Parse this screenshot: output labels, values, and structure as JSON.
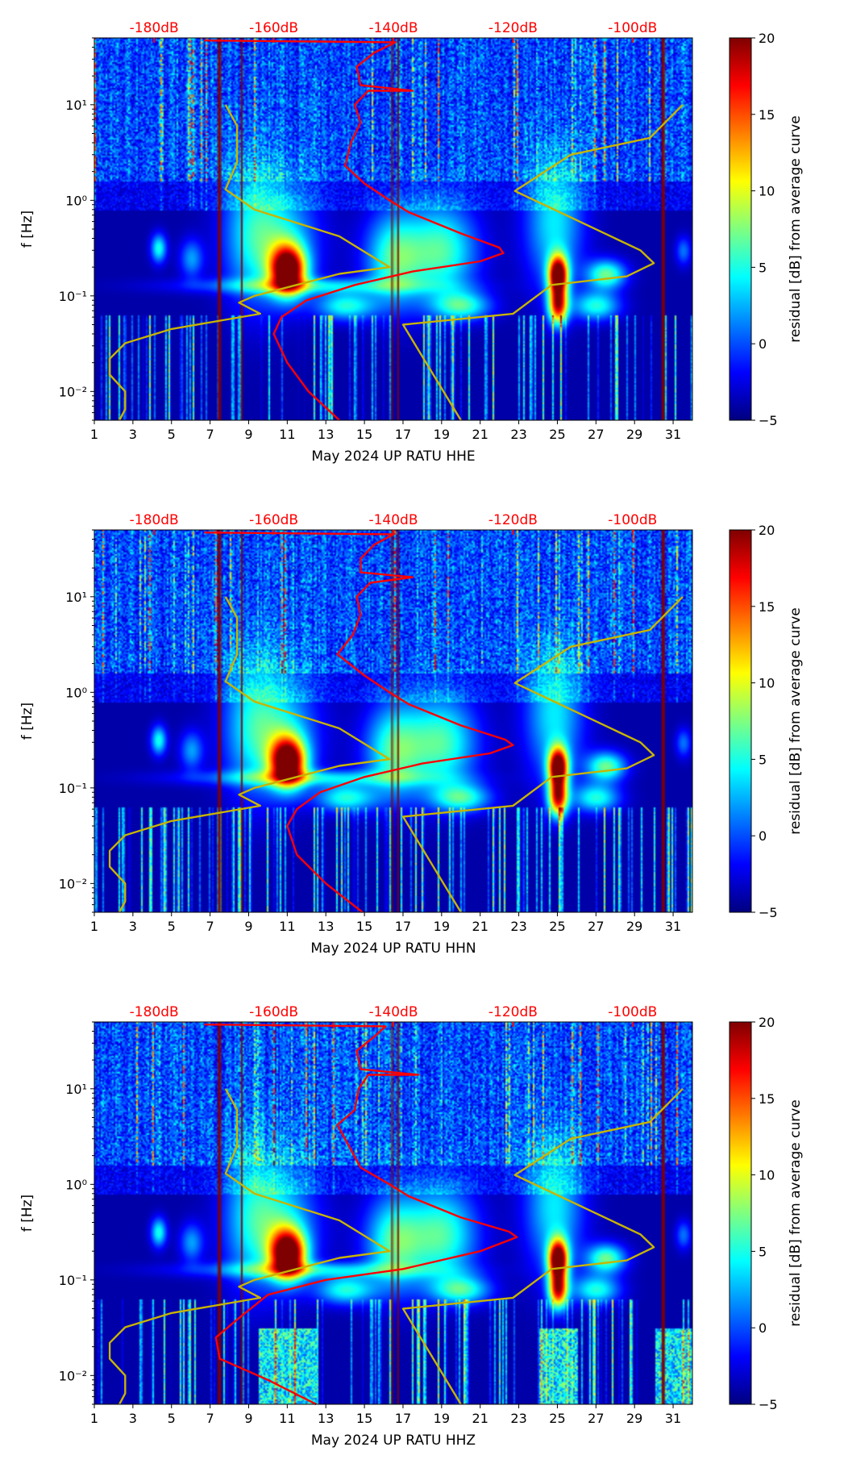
{
  "chart_data": [
    {
      "type": "heatmap",
      "xlabel": "May 2024 UP RATU  HHE",
      "ylabel": "f [Hz]",
      "xlim": [
        1,
        32
      ],
      "ylim": [
        0.005,
        50
      ],
      "yscale": "log",
      "xticks": [
        "1",
        "3",
        "5",
        "7",
        "9",
        "11",
        "13",
        "15",
        "17",
        "19",
        "21",
        "23",
        "25",
        "27",
        "29",
        "31"
      ],
      "yticks": [
        {
          "v": 0.01,
          "label": "10⁻²"
        },
        {
          "v": 0.1,
          "label": "10⁻¹"
        },
        {
          "v": 1,
          "label": "10⁰"
        },
        {
          "v": 10,
          "label": "10¹"
        }
      ],
      "top_axis": {
        "ticks": [
          {
            "db": -180,
            "label": "-180dB"
          },
          {
            "db": -160,
            "label": "-160dB"
          },
          {
            "db": -140,
            "label": "-140dB"
          },
          {
            "db": -120,
            "label": "-120dB"
          },
          {
            "db": -100,
            "label": "-100dB"
          }
        ],
        "day_at_minus180": 4.1,
        "days_per_db": 0.31
      },
      "colorbar": {
        "label": "residual [dB] from average curve",
        "range": [
          -5,
          20
        ],
        "ticks": [
          "−5",
          "0",
          "5",
          "10",
          "15",
          "20"
        ]
      },
      "series": [
        {
          "name": "median PSD (dB)",
          "color": "#ff0000",
          "points": [
            [
              13.7,
              0.005
            ],
            [
              12.1,
              0.01
            ],
            [
              11,
              0.02
            ],
            [
              10.3,
              0.04
            ],
            [
              10.7,
              0.06
            ],
            [
              12,
              0.09
            ],
            [
              14.5,
              0.13
            ],
            [
              17.5,
              0.18
            ],
            [
              21,
              0.23
            ],
            [
              22.2,
              0.28
            ],
            [
              22,
              0.32
            ],
            [
              20,
              0.45
            ],
            [
              17.3,
              0.75
            ],
            [
              16.3,
              1.0
            ],
            [
              15,
              1.5
            ],
            [
              14,
              2.3
            ],
            [
              14.3,
              4
            ],
            [
              14.8,
              6.5
            ],
            [
              14.5,
              10
            ],
            [
              15.2,
              14
            ],
            [
              17.5,
              14
            ],
            [
              14.8,
              16
            ],
            [
              14.6,
              25
            ],
            [
              15.5,
              35
            ],
            [
              16.6,
              45
            ],
            [
              6.7,
              47
            ]
          ]
        },
        {
          "name": "noise model low",
          "color": "#c8b400",
          "points": [
            [
              2.3,
              0.005
            ],
            [
              2.6,
              0.0065
            ],
            [
              2.6,
              0.01
            ],
            [
              1.8,
              0.015
            ],
            [
              1.8,
              0.022
            ],
            [
              2.6,
              0.032
            ],
            [
              5,
              0.045
            ],
            [
              9.6,
              0.065
            ],
            [
              8.5,
              0.085
            ],
            [
              9.3,
              0.1
            ],
            [
              13.7,
              0.17
            ],
            [
              16.3,
              0.2
            ],
            [
              13.7,
              0.42
            ],
            [
              9.3,
              0.8
            ],
            [
              7.8,
              1.3
            ],
            [
              8.4,
              2.5
            ],
            [
              8.4,
              6
            ],
            [
              7.8,
              10
            ]
          ]
        },
        {
          "name": "noise model high",
          "color": "#c8b400",
          "points": [
            [
              20,
              0.005
            ],
            [
              17,
              0.05
            ],
            [
              22.7,
              0.065
            ],
            [
              24.7,
              0.13
            ],
            [
              28.6,
              0.16
            ],
            [
              30,
              0.22
            ],
            [
              29.3,
              0.3
            ],
            [
              22.8,
              1.25
            ],
            [
              25.7,
              3
            ],
            [
              29.8,
              4.5
            ],
            [
              31.5,
              10
            ]
          ]
        }
      ]
    },
    {
      "type": "heatmap",
      "xlabel": "May 2024 UP RATU  HHN",
      "ylabel": "f [Hz]",
      "xlim": [
        1,
        32
      ],
      "ylim": [
        0.005,
        50
      ],
      "yscale": "log",
      "xticks": [
        "1",
        "3",
        "5",
        "7",
        "9",
        "11",
        "13",
        "15",
        "17",
        "19",
        "21",
        "23",
        "25",
        "27",
        "29",
        "31"
      ],
      "yticks": [
        {
          "v": 0.01,
          "label": "10⁻²"
        },
        {
          "v": 0.1,
          "label": "10⁻¹"
        },
        {
          "v": 1,
          "label": "10⁰"
        },
        {
          "v": 10,
          "label": "10¹"
        }
      ],
      "top_axis": {
        "ticks": [
          {
            "db": -180,
            "label": "-180dB"
          },
          {
            "db": -160,
            "label": "-160dB"
          },
          {
            "db": -140,
            "label": "-140dB"
          },
          {
            "db": -120,
            "label": "-120dB"
          },
          {
            "db": -100,
            "label": "-100dB"
          }
        ],
        "day_at_minus180": 4.1,
        "days_per_db": 0.31
      },
      "colorbar": {
        "label": "residual [dB] from average curve",
        "range": [
          -5,
          20
        ],
        "ticks": [
          "−5",
          "0",
          "5",
          "10",
          "15",
          "20"
        ]
      },
      "series": [
        {
          "name": "median PSD (dB)",
          "color": "#ff0000",
          "points": [
            [
              14.9,
              0.005
            ],
            [
              13,
              0.01
            ],
            [
              11.5,
              0.02
            ],
            [
              11,
              0.04
            ],
            [
              11.5,
              0.06
            ],
            [
              12.7,
              0.09
            ],
            [
              15,
              0.13
            ],
            [
              18,
              0.18
            ],
            [
              21.5,
              0.23
            ],
            [
              22.7,
              0.28
            ],
            [
              22.3,
              0.32
            ],
            [
              20,
              0.45
            ],
            [
              17.3,
              0.75
            ],
            [
              16.3,
              1.0
            ],
            [
              15,
              1.5
            ],
            [
              13.6,
              2.5
            ],
            [
              14.4,
              4
            ],
            [
              14.8,
              6.5
            ],
            [
              14.6,
              10
            ],
            [
              15.3,
              14
            ],
            [
              17.5,
              16
            ],
            [
              14.8,
              18
            ],
            [
              14.8,
              25
            ],
            [
              15.5,
              35
            ],
            [
              16.5,
              45
            ],
            [
              6.7,
              47
            ]
          ]
        },
        {
          "name": "noise model low",
          "color": "#c8b400",
          "points": [
            [
              2.3,
              0.005
            ],
            [
              2.6,
              0.0065
            ],
            [
              2.6,
              0.01
            ],
            [
              1.8,
              0.015
            ],
            [
              1.8,
              0.022
            ],
            [
              2.6,
              0.032
            ],
            [
              5,
              0.045
            ],
            [
              9.6,
              0.065
            ],
            [
              8.5,
              0.085
            ],
            [
              9.3,
              0.1
            ],
            [
              13.7,
              0.17
            ],
            [
              16.3,
              0.2
            ],
            [
              13.7,
              0.42
            ],
            [
              9.3,
              0.8
            ],
            [
              7.8,
              1.3
            ],
            [
              8.4,
              2.5
            ],
            [
              8.4,
              6
            ],
            [
              7.8,
              10
            ]
          ]
        },
        {
          "name": "noise model high",
          "color": "#c8b400",
          "points": [
            [
              20,
              0.005
            ],
            [
              17,
              0.05
            ],
            [
              22.7,
              0.065
            ],
            [
              24.7,
              0.13
            ],
            [
              28.6,
              0.16
            ],
            [
              30,
              0.22
            ],
            [
              29.3,
              0.3
            ],
            [
              22.8,
              1.25
            ],
            [
              25.7,
              3
            ],
            [
              29.8,
              4.5
            ],
            [
              31.5,
              10
            ]
          ]
        }
      ]
    },
    {
      "type": "heatmap",
      "xlabel": "May 2024 UP RATU  HHZ",
      "ylabel": "f [Hz]",
      "xlim": [
        1,
        32
      ],
      "ylim": [
        0.005,
        50
      ],
      "yscale": "log",
      "xticks": [
        "1",
        "3",
        "5",
        "7",
        "9",
        "11",
        "13",
        "15",
        "17",
        "19",
        "21",
        "23",
        "25",
        "27",
        "29",
        "31"
      ],
      "yticks": [
        {
          "v": 0.01,
          "label": "10⁻²"
        },
        {
          "v": 0.1,
          "label": "10⁻¹"
        },
        {
          "v": 1,
          "label": "10⁰"
        },
        {
          "v": 10,
          "label": "10¹"
        }
      ],
      "top_axis": {
        "ticks": [
          {
            "db": -180,
            "label": "-180dB"
          },
          {
            "db": -160,
            "label": "-160dB"
          },
          {
            "db": -140,
            "label": "-140dB"
          },
          {
            "db": -120,
            "label": "-120dB"
          },
          {
            "db": -100,
            "label": "-100dB"
          }
        ],
        "day_at_minus180": 4.1,
        "days_per_db": 0.31
      },
      "colorbar": {
        "label": "residual [dB] from average curve",
        "range": [
          -5,
          20
        ],
        "ticks": [
          "−5",
          "0",
          "5",
          "10",
          "15",
          "20"
        ]
      },
      "series": [
        {
          "name": "median PSD (dB)",
          "color": "#ff0000",
          "points": [
            [
              12.5,
              0.005
            ],
            [
              10,
              0.009
            ],
            [
              7.5,
              0.015
            ],
            [
              7.3,
              0.025
            ],
            [
              8.5,
              0.04
            ],
            [
              10,
              0.07
            ],
            [
              13,
              0.1
            ],
            [
              17,
              0.13
            ],
            [
              21,
              0.2
            ],
            [
              22.9,
              0.28
            ],
            [
              22.5,
              0.32
            ],
            [
              20,
              0.45
            ],
            [
              17.3,
              0.75
            ],
            [
              16.3,
              1.0
            ],
            [
              14.8,
              1.5
            ],
            [
              13.6,
              4.2
            ],
            [
              14.5,
              6
            ],
            [
              14.7,
              10
            ],
            [
              15.2,
              14
            ],
            [
              17.8,
              14
            ],
            [
              14.8,
              16
            ],
            [
              14.6,
              25
            ],
            [
              15.5,
              35
            ],
            [
              16.1,
              45
            ],
            [
              6.7,
              47
            ]
          ]
        },
        {
          "name": "noise model low",
          "color": "#c8b400",
          "points": [
            [
              2.3,
              0.005
            ],
            [
              2.6,
              0.0065
            ],
            [
              2.6,
              0.01
            ],
            [
              1.8,
              0.015
            ],
            [
              1.8,
              0.022
            ],
            [
              2.6,
              0.032
            ],
            [
              5,
              0.045
            ],
            [
              9.6,
              0.065
            ],
            [
              8.5,
              0.085
            ],
            [
              9.3,
              0.1
            ],
            [
              13.7,
              0.17
            ],
            [
              16.3,
              0.2
            ],
            [
              13.7,
              0.42
            ],
            [
              9.3,
              0.8
            ],
            [
              7.8,
              1.3
            ],
            [
              8.4,
              2.5
            ],
            [
              8.4,
              6
            ],
            [
              7.8,
              10
            ]
          ]
        },
        {
          "name": "noise model high",
          "color": "#c8b400",
          "points": [
            [
              20,
              0.005
            ],
            [
              17,
              0.05
            ],
            [
              22.7,
              0.065
            ],
            [
              24.7,
              0.13
            ],
            [
              28.6,
              0.16
            ],
            [
              30,
              0.22
            ],
            [
              29.3,
              0.3
            ],
            [
              22.8,
              1.25
            ],
            [
              25.7,
              3
            ],
            [
              29.8,
              4.5
            ],
            [
              31.5,
              10
            ]
          ]
        }
      ]
    }
  ]
}
